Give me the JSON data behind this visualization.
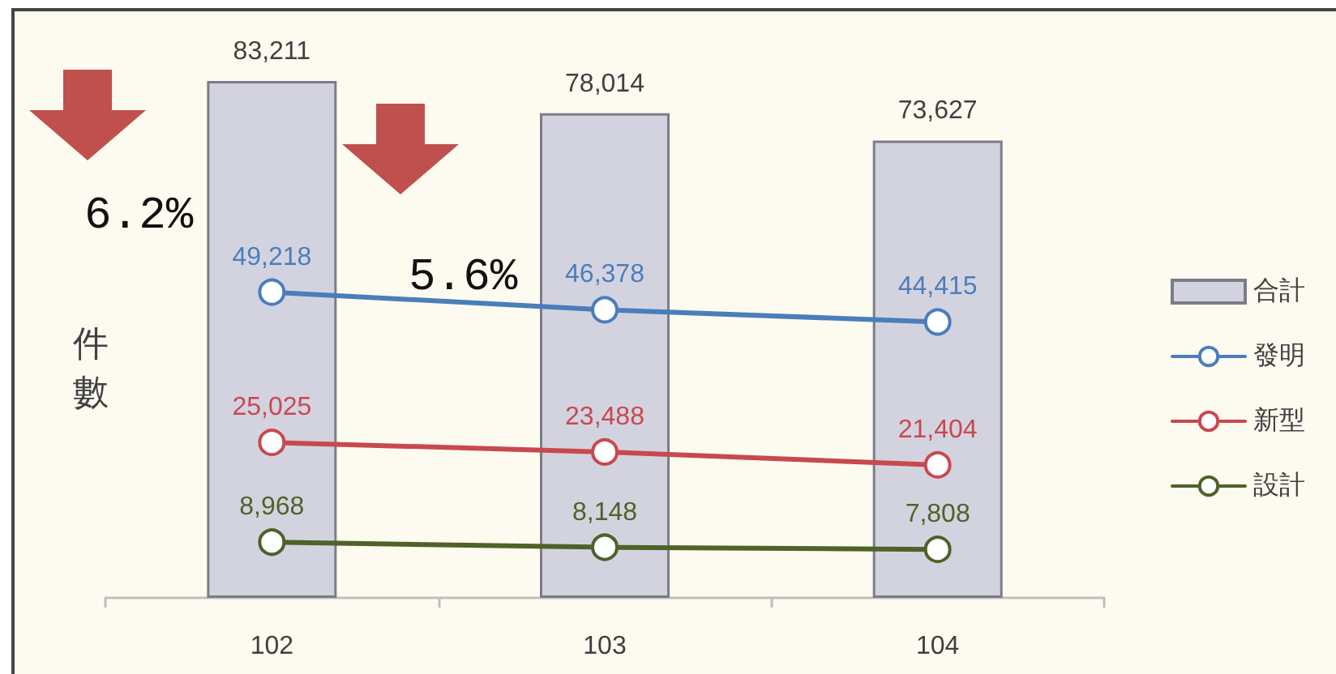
{
  "chart_data": {
    "type": "bar",
    "categories": [
      "102",
      "103",
      "104"
    ],
    "ylabel": "件數",
    "annotations": [
      "6.2%",
      "5.6%"
    ],
    "series": [
      {
        "name": "合計",
        "color": "#d3d3e0",
        "values": [
          83211,
          78014,
          73627
        ],
        "value_labels": [
          "83,211",
          "78,014",
          "73,627"
        ]
      },
      {
        "name": "發明",
        "type": "line",
        "color": "#4a7ebb",
        "values": [
          49218,
          46378,
          44415
        ],
        "value_labels": [
          "49,218",
          "46,378",
          "44,415"
        ]
      },
      {
        "name": "新型",
        "type": "line",
        "color": "#c9484f",
        "values": [
          25025,
          23488,
          21404
        ],
        "value_labels": [
          "25,025",
          "23,488",
          "21,404"
        ]
      },
      {
        "name": "設計",
        "type": "line",
        "color": "#4f6228",
        "values": [
          8968,
          8148,
          7808
        ],
        "value_labels": [
          "8,968",
          "8,148",
          "7,808"
        ]
      }
    ],
    "legend": "right",
    "marker": "circle",
    "tick_labels": "x"
  }
}
